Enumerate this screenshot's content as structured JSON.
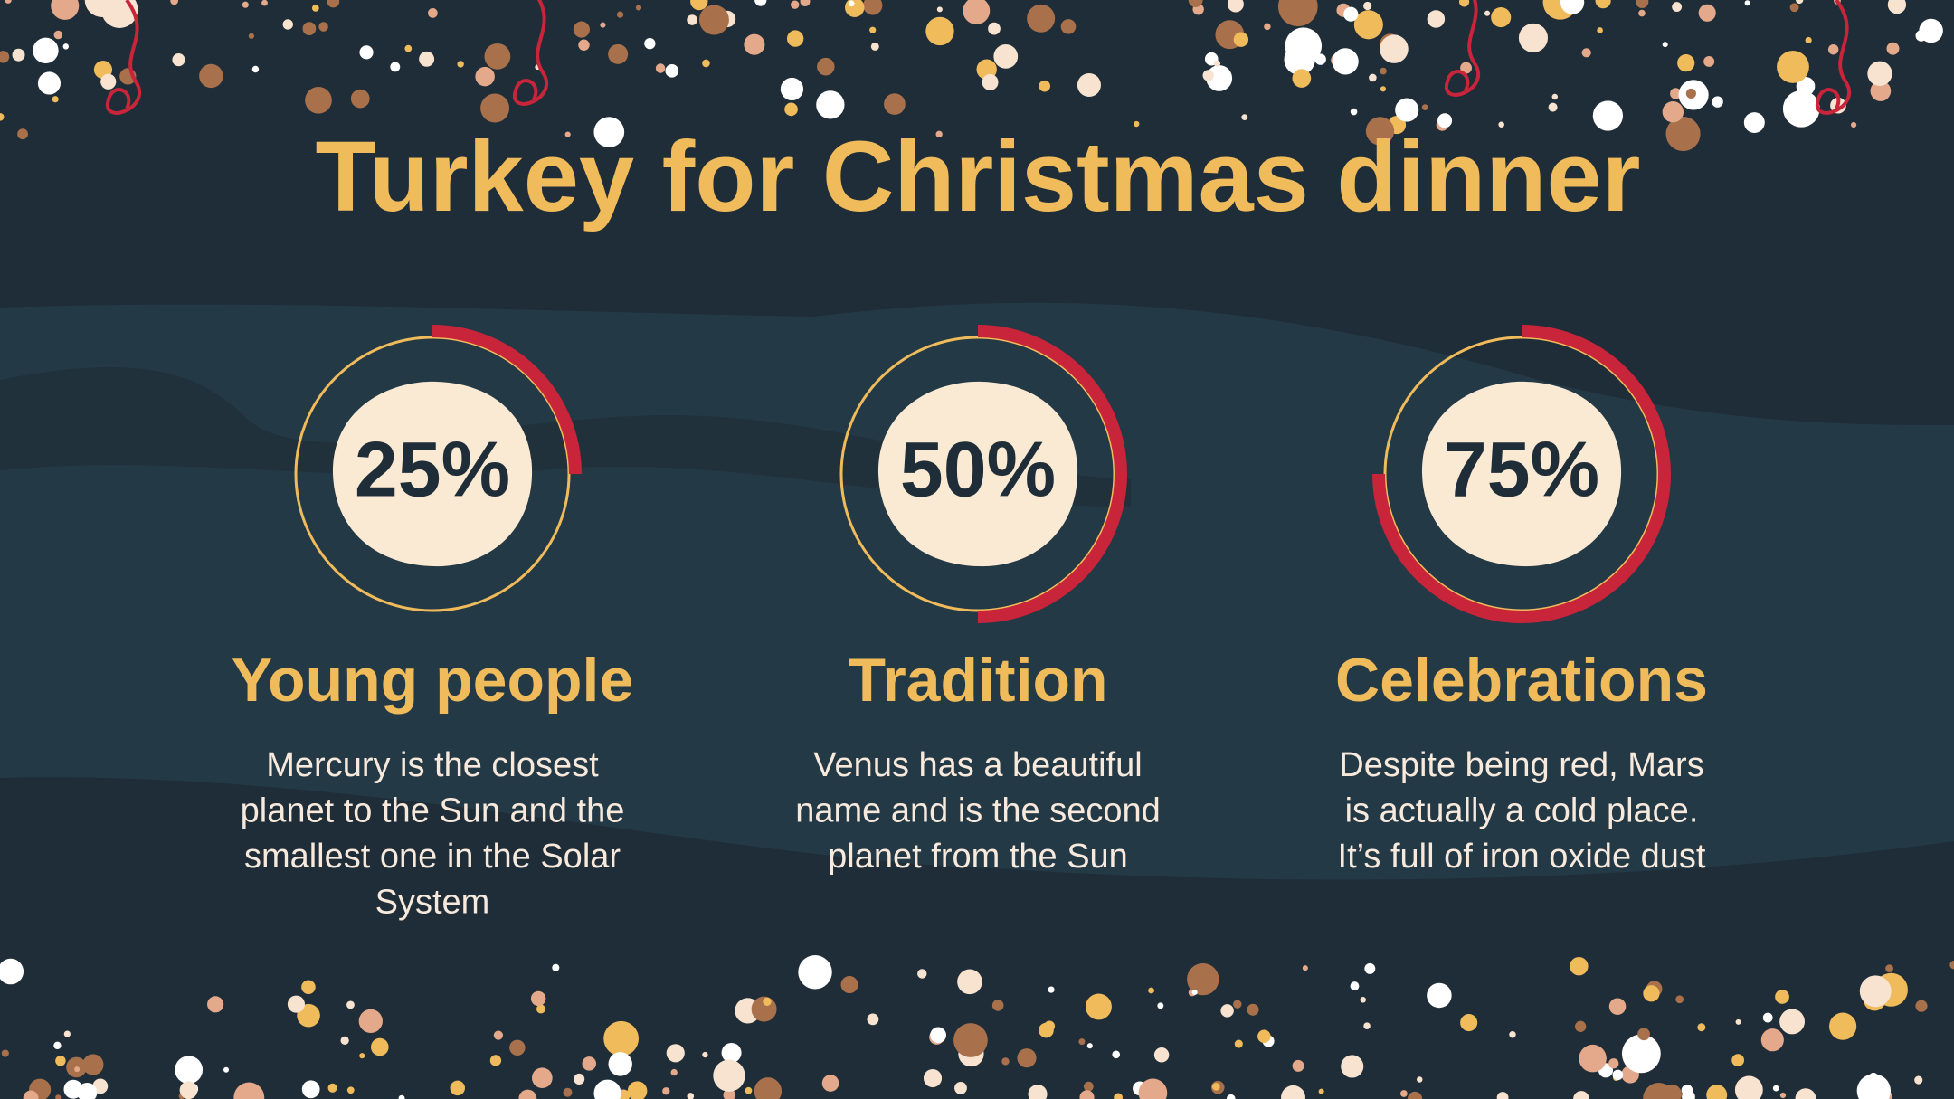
{
  "title": "Turkey for Christmas dinner",
  "chart_data": [
    {
      "type": "donut",
      "title": "Young people",
      "values": [
        25
      ],
      "value_labels": [
        "25%"
      ],
      "color": "#c8243a",
      "track_color": "#f0bb5b",
      "description": [
        "Mercury is the closest",
        "planet to the Sun and the",
        "smallest one in the Solar",
        "System"
      ]
    },
    {
      "type": "donut",
      "title": "Tradition",
      "values": [
        50
      ],
      "value_labels": [
        "50%"
      ],
      "color": "#c8243a",
      "track_color": "#f0bb5b",
      "description": [
        "Venus has a beautiful",
        "name and is the second",
        "planet from the Sun"
      ]
    },
    {
      "type": "donut",
      "title": "Celebrations",
      "values": [
        75
      ],
      "value_labels": [
        "75%"
      ],
      "color": "#c8243a",
      "track_color": "#f0bb5b",
      "description": [
        "Despite being red, Mars",
        "is actually a cold place.",
        "It’s full of iron oxide dust"
      ]
    }
  ]
}
